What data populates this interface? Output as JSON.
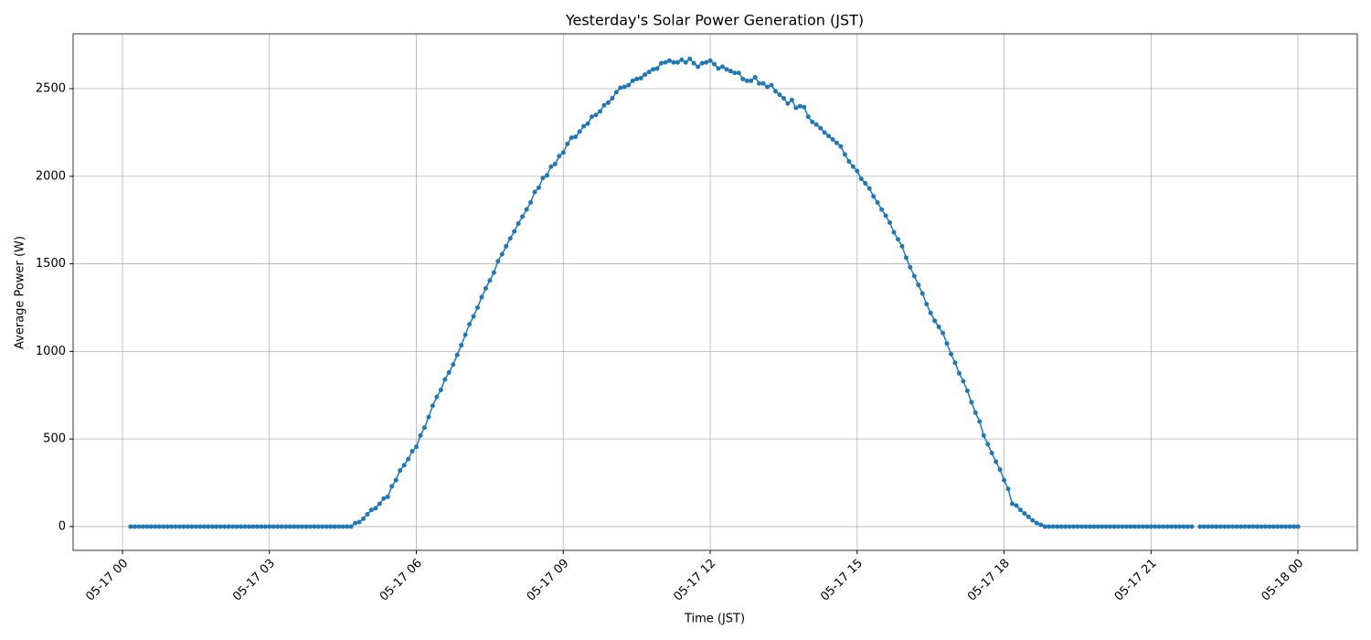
{
  "chart_data": {
    "type": "line",
    "title": "Yesterday's Solar Power Generation (JST)",
    "x_label": "Time (JST)",
    "y_label": "Average Power (W)",
    "grid": true,
    "marker": "o",
    "xlim": [
      -60.5,
      1512.7
    ],
    "ylim": [
      -136,
      2813
    ],
    "xticks": [
      {
        "value": 0,
        "label": "05-17 00"
      },
      {
        "value": 180,
        "label": "05-17 03"
      },
      {
        "value": 360,
        "label": "05-17 06"
      },
      {
        "value": 540,
        "label": "05-17 09"
      },
      {
        "value": 720,
        "label": "05-17 12"
      },
      {
        "value": 900,
        "label": "05-17 15"
      },
      {
        "value": 1080,
        "label": "05-17 18"
      },
      {
        "value": 1260,
        "label": "05-17 21"
      },
      {
        "value": 1440,
        "label": "05-18 00"
      }
    ],
    "yticks": [
      0,
      500,
      1000,
      1500,
      2000,
      2500
    ],
    "x": [
      10,
      15,
      20,
      25,
      30,
      35,
      40,
      45,
      50,
      55,
      60,
      65,
      70,
      75,
      80,
      85,
      90,
      95,
      100,
      105,
      110,
      115,
      120,
      125,
      130,
      135,
      140,
      145,
      150,
      155,
      160,
      165,
      170,
      175,
      180,
      185,
      190,
      195,
      200,
      205,
      210,
      215,
      220,
      225,
      230,
      235,
      240,
      245,
      250,
      255,
      260,
      265,
      270,
      275,
      280,
      285,
      290,
      295,
      300,
      305,
      310,
      315,
      320,
      325,
      330,
      335,
      340,
      345,
      350,
      355,
      360,
      365,
      370,
      375,
      380,
      385,
      390,
      395,
      400,
      405,
      410,
      415,
      420,
      425,
      430,
      435,
      440,
      445,
      450,
      455,
      460,
      465,
      470,
      475,
      480,
      485,
      490,
      495,
      500,
      505,
      510,
      515,
      520,
      525,
      530,
      535,
      540,
      545,
      550,
      555,
      560,
      565,
      570,
      575,
      580,
      585,
      590,
      595,
      600,
      605,
      610,
      615,
      620,
      625,
      630,
      635,
      640,
      645,
      650,
      655,
      660,
      665,
      670,
      675,
      680,
      685,
      690,
      695,
      700,
      705,
      710,
      715,
      720,
      725,
      730,
      735,
      740,
      745,
      750,
      755,
      760,
      765,
      770,
      775,
      780,
      785,
      790,
      795,
      800,
      805,
      810,
      815,
      820,
      825,
      830,
      835,
      840,
      845,
      850,
      855,
      860,
      865,
      870,
      875,
      880,
      885,
      890,
      895,
      900,
      905,
      910,
      915,
      920,
      925,
      930,
      935,
      940,
      945,
      950,
      955,
      960,
      965,
      970,
      975,
      980,
      985,
      990,
      995,
      1000,
      1005,
      1010,
      1015,
      1020,
      1025,
      1030,
      1035,
      1040,
      1045,
      1050,
      1055,
      1060,
      1065,
      1070,
      1075,
      1080,
      1085,
      1090,
      1095,
      1100,
      1105,
      1110,
      1115,
      1120,
      1125,
      1130,
      1135,
      1140,
      1145,
      1150,
      1155,
      1160,
      1165,
      1170,
      1175,
      1180,
      1185,
      1190,
      1195,
      1200,
      1205,
      1210,
      1215,
      1220,
      1225,
      1230,
      1235,
      1240,
      1245,
      1250,
      1255,
      1260,
      1265,
      1270,
      1275,
      1280,
      1285,
      1290,
      1295,
      1300,
      1305,
      1310,
      1315,
      1320,
      1325,
      1330,
      1335,
      1340,
      1345,
      1350,
      1355,
      1360,
      1365,
      1370,
      1375,
      1380,
      1385,
      1390,
      1395,
      1400,
      1405,
      1410,
      1415,
      1420,
      1425,
      1430,
      1435,
      1440
    ],
    "series": [
      {
        "name": "Average Power",
        "color": "#1f77b4",
        "values": [
          0,
          0,
          0,
          0,
          0,
          0,
          0,
          0,
          0,
          0,
          0,
          0,
          0,
          0,
          0,
          0,
          0,
          0,
          0,
          0,
          0,
          0,
          0,
          0,
          0,
          0,
          0,
          0,
          0,
          0,
          0,
          0,
          0,
          0,
          0,
          0,
          0,
          0,
          0,
          0,
          0,
          0,
          0,
          0,
          0,
          0,
          0,
          0,
          0,
          0,
          0,
          0,
          0,
          0,
          0,
          20,
          25,
          45,
          70,
          95,
          105,
          130,
          160,
          170,
          230,
          265,
          320,
          350,
          385,
          430,
          455,
          520,
          565,
          625,
          690,
          740,
          780,
          840,
          880,
          925,
          980,
          1035,
          1095,
          1155,
          1200,
          1250,
          1310,
          1360,
          1405,
          1450,
          1515,
          1555,
          1600,
          1645,
          1685,
          1730,
          1770,
          1810,
          1850,
          1910,
          1935,
          1990,
          2005,
          2055,
          2070,
          2115,
          2135,
          2185,
          2220,
          2225,
          2255,
          2285,
          2300,
          2340,
          2350,
          2370,
          2405,
          2420,
          2445,
          2480,
          2505,
          2510,
          2520,
          2545,
          2555,
          2560,
          2580,
          2595,
          2610,
          2615,
          2645,
          2650,
          2660,
          2650,
          2650,
          2665,
          2650,
          2670,
          2645,
          2625,
          2645,
          2650,
          2660,
          2640,
          2615,
          2625,
          2610,
          2600,
          2590,
          2590,
          2555,
          2545,
          2545,
          2565,
          2530,
          2530,
          2510,
          2520,
          2485,
          2465,
          2445,
          2415,
          2435,
          2390,
          2400,
          2395,
          2340,
          2310,
          2295,
          2275,
          2250,
          2230,
          2210,
          2190,
          2170,
          2125,
          2085,
          2055,
          2030,
          1985,
          1960,
          1930,
          1885,
          1850,
          1810,
          1775,
          1735,
          1680,
          1640,
          1600,
          1535,
          1480,
          1430,
          1380,
          1330,
          1270,
          1220,
          1175,
          1140,
          1105,
          1045,
          985,
          935,
          875,
          830,
          775,
          710,
          650,
          600,
          520,
          470,
          420,
          370,
          325,
          265,
          215,
          130,
          120,
          95,
          75,
          55,
          35,
          20,
          10,
          0,
          0,
          0,
          0,
          0,
          0,
          0,
          0,
          0,
          0,
          0,
          0,
          0,
          0,
          0,
          0,
          0,
          0,
          0,
          0,
          0,
          0,
          0,
          0,
          0,
          0,
          0,
          0,
          0,
          0,
          0,
          0,
          0,
          0,
          0,
          0,
          0,
          null,
          0,
          0,
          0,
          0,
          0,
          0,
          0,
          0,
          0,
          0,
          0,
          0,
          0,
          0,
          0,
          0,
          0,
          0,
          0,
          0,
          0,
          0,
          0,
          0,
          0
        ]
      }
    ]
  }
}
